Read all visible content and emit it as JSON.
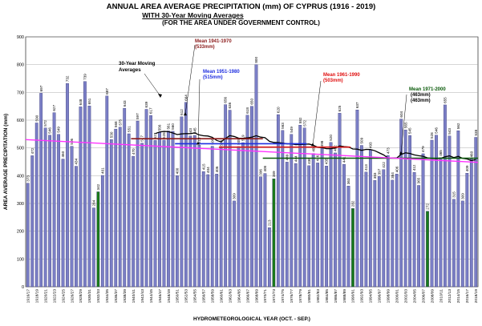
{
  "title_lines": [
    "ANNUAL AREA AVERAGE PRECIPITATION (mm) OF CYPRUS  (1916 - 2019)",
    "WITH  30-Year Moving Averages",
    "(FOR THE AREA UNDER GOVERNMENT CONTROL)"
  ],
  "chart_data": {
    "type": "bar",
    "ylabel": "AREA AVERAGE PRECIPITATION (mm)",
    "xlabel": "HYDROMETEOROLOGICAL  YEAR (OCT. - SEP.)",
    "ylim": [
      0,
      900
    ],
    "yticks": [
      0,
      100,
      200,
      300,
      400,
      500,
      600,
      700,
      800,
      900
    ],
    "grid": true,
    "bar_color": "#7b7fc6",
    "highlight_bar_color": "#1a7a1a",
    "highlight_years": [
      "1932/33",
      "1972/73",
      "1990/91",
      "2007/08"
    ],
    "categories": [
      "1916/17",
      "1917/18",
      "1918/19",
      "1919/20",
      "1920/21",
      "1921/22",
      "1922/23",
      "1923/24",
      "1924/25",
      "1925/26",
      "1926/27",
      "1927/28",
      "1928/29",
      "1929/30",
      "1930/31",
      "1931/32",
      "1932/33",
      "1933/34",
      "1934/35",
      "1935/36",
      "1936/37",
      "1937/38",
      "1938/39",
      "1939/40",
      "1940/41",
      "1941/42",
      "1942/43",
      "1943/44",
      "1944/45",
      "1945/46",
      "1946/47",
      "1947/48",
      "1948/49",
      "1949/50",
      "1950/51",
      "1951/52",
      "1952/53",
      "1953/54",
      "1954/55",
      "1955/56",
      "1956/57",
      "1957/58",
      "1958/59",
      "1959/60",
      "1960/61",
      "1961/62",
      "1962/63",
      "1963/64",
      "1964/65",
      "1965/66",
      "1966/67",
      "1967/68",
      "1968/69",
      "1969/70",
      "1970/71",
      "1971/72",
      "1972/73",
      "1973/74",
      "1974/75",
      "1975/76",
      "1976/77",
      "1977/78",
      "1978/79",
      "1979/80",
      "1980/81",
      "1981/82",
      "1982/83",
      "1983/84",
      "1984/85",
      "1985/86",
      "1986/87",
      "1987/88",
      "1988/89",
      "1989/90",
      "1990/91",
      "1991/92",
      "1992/93",
      "1993/94",
      "1994/95",
      "1995/96",
      "1996/97",
      "1997/98",
      "1998/99",
      "1999/00",
      "2000/01",
      "2001/02",
      "2002/03",
      "2003/04",
      "2004/05",
      "2005/06",
      "2006/07",
      "2007/08",
      "2008/09",
      "2009/10",
      "2010/11",
      "2011/12",
      "2012/13",
      "2013/14",
      "2014/15",
      "2015/16",
      "2016/17",
      "2017/18",
      "2018/19"
    ],
    "tick_labels": [
      "1916/17",
      "1918/19",
      "1920/21",
      "1922/23",
      "1924/25",
      "1926/27",
      "1928/29",
      "1930/31",
      "1932/33",
      "1934/35",
      "1936/37",
      "1938/39",
      "1940/41",
      "1942/43",
      "1944/45",
      "1946/47",
      "1948/49",
      "1950/51",
      "1952/53",
      "1954/55",
      "1956/57",
      "1958/59",
      "1960/61",
      "1962/63",
      "1964/65",
      "1966/67",
      "1968/69",
      "1970/71",
      "1972/73",
      "1974/75",
      "1976/77",
      "1978/79",
      "1980/81",
      "1982/83",
      "1984/85",
      "1986/87",
      "1988/89",
      "1990/91",
      "1992/93",
      "1994/95",
      "1996/97",
      "1998/99",
      "2000/01",
      "2002/03",
      "2004/05",
      "2006/07",
      "2008/09",
      "2010/11",
      "2012/13",
      "2014/15",
      "2016/17",
      "2018/19"
    ],
    "values": [
      373,
      472,
      590,
      697,
      572,
      546,
      627,
      549,
      460,
      732,
      506,
      434,
      648,
      739,
      651,
      284,
      342,
      401,
      687,
      530,
      568,
      575,
      643,
      551,
      470,
      597,
      517,
      639,
      617,
      527,
      556,
      528,
      561,
      560,
      400,
      612,
      664,
      543,
      545,
      510,
      415,
      404,
      506,
      406,
      500,
      656,
      636,
      309,
      505,
      519,
      618,
      650,
      800,
      396,
      408,
      213,
      389,
      620,
      563,
      449,
      549,
      444,
      582,
      572,
      436,
      480,
      446,
      498,
      435,
      520,
      482,
      625,
      441,
      363,
      282,
      637,
      509,
      413,
      493,
      383,
      397,
      422,
      473,
      384,
      406,
      604,
      565,
      545,
      412,
      365,
      479,
      272,
      528,
      546,
      465,
      655,
      543,
      315,
      562,
      309,
      409,
      460,
      538
    ],
    "moving_averages": [
      {
        "name": "Mean 1941-1970",
        "value_text": "(533mm)",
        "value": 533,
        "from": "1940/41",
        "to": "1969/70",
        "color": "#8b1a1a"
      },
      {
        "name": "Mean 1951-1980",
        "value_text": "(515mm)",
        "value": 515,
        "from": "1950/51",
        "to": "1979/80",
        "color": "#1f2fe0"
      },
      {
        "name": "Mean 1961-1990",
        "value_text": "(503mm)",
        "value": 503,
        "from": "1960/61",
        "to": "1989/90",
        "color": "#e01010"
      },
      {
        "name": "Mean 1971-2000",
        "value_text": "(463mm)\n(463mm)",
        "value": 463,
        "from": "1970/71",
        "to": "2018/19",
        "color": "#0a5a0a"
      }
    ],
    "annotation_30yr": "30-Year Moving\nAverages",
    "trend": {
      "from": 530,
      "to": 448,
      "color": "#ff33ff"
    }
  },
  "footer_text": ""
}
